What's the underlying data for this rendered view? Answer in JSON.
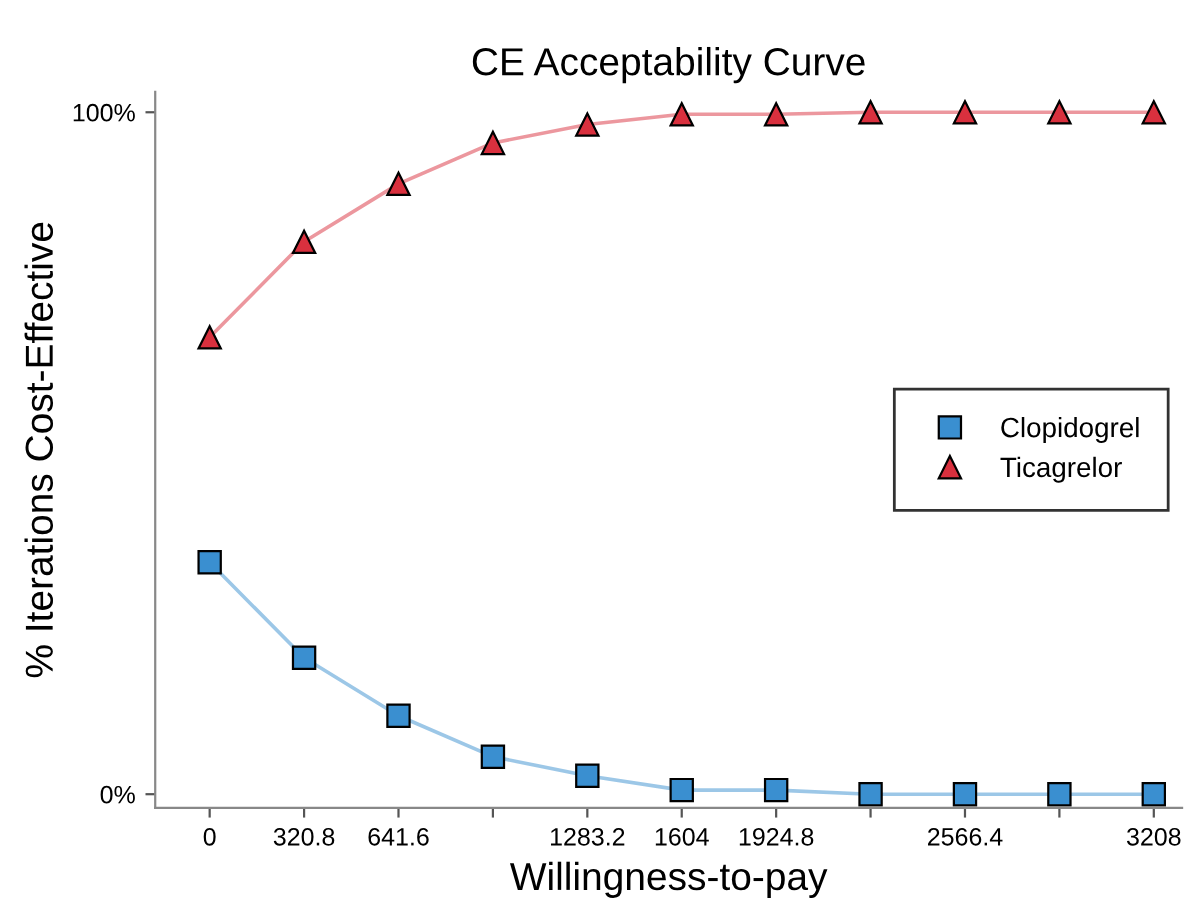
{
  "chart_data": {
    "type": "line",
    "title": "CE Acceptability Curve",
    "xlabel": "Willingness-to-pay",
    "ylabel": "% Iterations Cost-Effective",
    "x": [
      0,
      320.8,
      641.6,
      962.4,
      1283.2,
      1604,
      1924.8,
      2245.6,
      2566.4,
      2887.2,
      3208
    ],
    "series": [
      {
        "name": "Clopidogrel",
        "color": "#3a8fd0",
        "marker": "square",
        "values": [
          34,
          20,
          11.5,
          5.5,
          2.7,
          0.6,
          0.6,
          0,
          0,
          0,
          0
        ]
      },
      {
        "name": "Ticagrelor",
        "color": "#d9303e",
        "marker": "triangle",
        "values": [
          67,
          81,
          89.5,
          95.5,
          98.2,
          99.7,
          99.7,
          100,
          100,
          100,
          100
        ]
      }
    ],
    "xlim": [
      -185,
      3304
    ],
    "ylim": [
      -2,
      103
    ],
    "xticks": [
      0,
      320.8,
      641.6,
      {
        "value": 962.4,
        "label": null
      },
      1283.2,
      1604,
      1924.8,
      {
        "value": 2245.6,
        "label": null
      },
      2566.4,
      {
        "value": 2887.2,
        "label": null
      },
      3208
    ],
    "yticks": [
      {
        "value": 0,
        "label": "0%"
      },
      {
        "value": 100,
        "label": "100%"
      }
    ],
    "grid": false,
    "legend": "right",
    "line_style": "solid"
  }
}
